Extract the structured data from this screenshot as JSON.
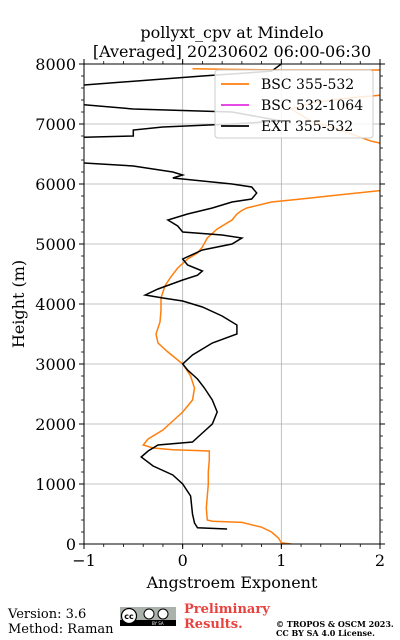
{
  "chart_data": {
    "type": "line",
    "title_line1": "pollyxt_cpv at Mindelo",
    "title_line2": "[Averaged] 20230602 06:00-06:30",
    "xlabel": "Angstroem Exponent",
    "ylabel": "Height (m)",
    "xlim": [
      -1,
      2
    ],
    "ylim": [
      0,
      8000
    ],
    "xticks": [
      "−1",
      "0",
      "1",
      "2"
    ],
    "yticks": [
      "0",
      "1000",
      "2000",
      "3000",
      "4000",
      "5000",
      "6000",
      "7000",
      "8000"
    ],
    "grid": true,
    "legend_position": "top-right",
    "series": [
      {
        "name": "BSC 355-532",
        "color": "#ff7f0e",
        "points": [
          [
            1.1,
            0
          ],
          [
            1.0,
            20
          ],
          [
            0.97,
            100
          ],
          [
            0.9,
            200
          ],
          [
            0.8,
            280
          ],
          [
            0.6,
            360
          ],
          [
            0.3,
            380
          ],
          [
            0.25,
            400
          ],
          [
            0.24,
            600
          ],
          [
            0.25,
            800
          ],
          [
            0.26,
            1000
          ],
          [
            0.26,
            1200
          ],
          [
            0.27,
            1400
          ],
          [
            0.27,
            1550
          ],
          [
            -0.1,
            1570
          ],
          [
            -0.3,
            1600
          ],
          [
            -0.4,
            1650
          ],
          [
            -0.35,
            1750
          ],
          [
            -0.2,
            1900
          ],
          [
            -0.1,
            2050
          ],
          [
            0.0,
            2200
          ],
          [
            0.1,
            2400
          ],
          [
            0.12,
            2600
          ],
          [
            0.08,
            2800
          ],
          [
            0.0,
            3000
          ],
          [
            -0.15,
            3200
          ],
          [
            -0.25,
            3350
          ],
          [
            -0.27,
            3500
          ],
          [
            -0.23,
            3700
          ],
          [
            -0.22,
            3900
          ],
          [
            -0.22,
            4100
          ],
          [
            -0.18,
            4300
          ],
          [
            -0.12,
            4450
          ],
          [
            -0.05,
            4600
          ],
          [
            0.05,
            4750
          ],
          [
            0.15,
            4850
          ],
          [
            0.2,
            4950
          ],
          [
            0.25,
            5100
          ],
          [
            0.35,
            5250
          ],
          [
            0.5,
            5400
          ],
          [
            0.55,
            5500
          ],
          [
            0.6,
            5560
          ],
          [
            0.65,
            5600
          ],
          [
            0.9,
            5700
          ],
          [
            1.2,
            5750
          ],
          [
            1.6,
            5820
          ],
          [
            2.0,
            5890
          ]
        ],
        "points_upper": [
          [
            2.0,
            6680
          ],
          [
            1.9,
            6720
          ],
          [
            1.8,
            6780
          ],
          [
            1.6,
            6900
          ],
          [
            1.3,
            7050
          ],
          [
            1.1,
            7250
          ],
          [
            1.3,
            7350
          ],
          [
            1.6,
            7420
          ],
          [
            2.0,
            7480
          ]
        ],
        "points_top": [
          [
            0.1,
            7920
          ],
          [
            0.5,
            7910
          ],
          [
            1.0,
            7900
          ],
          [
            2.0,
            7900
          ]
        ]
      },
      {
        "name": "BSC 532-1064",
        "color": "#e32fe3",
        "points": []
      },
      {
        "name": "EXT 355-532",
        "color": "#000000",
        "points": [
          [
            0.45,
            250
          ],
          [
            0.15,
            270
          ],
          [
            0.12,
            350
          ],
          [
            0.1,
            500
          ],
          [
            0.08,
            800
          ],
          [
            0.0,
            1000
          ],
          [
            -0.1,
            1150
          ],
          [
            -0.3,
            1300
          ],
          [
            -0.42,
            1450
          ],
          [
            -0.35,
            1550
          ],
          [
            -0.25,
            1650
          ],
          [
            0.1,
            1700
          ],
          [
            0.2,
            1850
          ],
          [
            0.3,
            2000
          ],
          [
            0.35,
            2200
          ],
          [
            0.3,
            2400
          ],
          [
            0.22,
            2600
          ],
          [
            0.15,
            2750
          ],
          [
            0.05,
            2900
          ],
          [
            0.0,
            3000
          ],
          [
            0.1,
            3150
          ],
          [
            0.3,
            3350
          ],
          [
            0.55,
            3500
          ],
          [
            0.55,
            3650
          ],
          [
            0.4,
            3800
          ],
          [
            0.2,
            3950
          ],
          [
            0.0,
            4050
          ],
          [
            -0.2,
            4100
          ],
          [
            -0.38,
            4150
          ],
          [
            -0.25,
            4250
          ],
          [
            0.0,
            4400
          ],
          [
            0.15,
            4480
          ],
          [
            0.2,
            4550
          ],
          [
            0.05,
            4650
          ],
          [
            0.0,
            4750
          ],
          [
            0.2,
            4900
          ],
          [
            0.5,
            5000
          ],
          [
            0.6,
            5100
          ],
          [
            0.4,
            5150
          ],
          [
            0.0,
            5200
          ],
          [
            -0.05,
            5300
          ],
          [
            -0.15,
            5400
          ],
          [
            0.05,
            5500
          ],
          [
            0.3,
            5600
          ],
          [
            0.5,
            5700
          ],
          [
            0.7,
            5750
          ],
          [
            0.75,
            5850
          ],
          [
            0.7,
            5950
          ],
          [
            0.5,
            6000
          ],
          [
            0.2,
            6050
          ],
          [
            -0.1,
            6100
          ],
          [
            0.0,
            6150
          ],
          [
            -0.1,
            6200
          ],
          [
            -0.5,
            6300
          ],
          [
            -1.0,
            6350
          ]
        ],
        "points_upper": [
          [
            -1.0,
            6780
          ],
          [
            -0.5,
            6800
          ],
          [
            -0.5,
            6900
          ],
          [
            -0.2,
            6950
          ],
          [
            0.5,
            7000
          ],
          [
            1.0,
            7050
          ],
          [
            0.5,
            7200
          ],
          [
            -0.5,
            7250
          ],
          [
            -1.0,
            7320
          ]
        ],
        "points_top": [
          [
            -1.0,
            7650
          ],
          [
            0.2,
            7800
          ],
          [
            0.9,
            7880
          ],
          [
            1.0,
            8000
          ]
        ]
      }
    ]
  },
  "footer": {
    "version": "Version: 3.6",
    "method": "Method: Raman",
    "preliminary_line1": "Preliminary",
    "preliminary_line2": "Results.",
    "copyright_line1": "© TROPOS & OSCM 2023.",
    "copyright_line2": "CC BY SA 4.0 License."
  }
}
